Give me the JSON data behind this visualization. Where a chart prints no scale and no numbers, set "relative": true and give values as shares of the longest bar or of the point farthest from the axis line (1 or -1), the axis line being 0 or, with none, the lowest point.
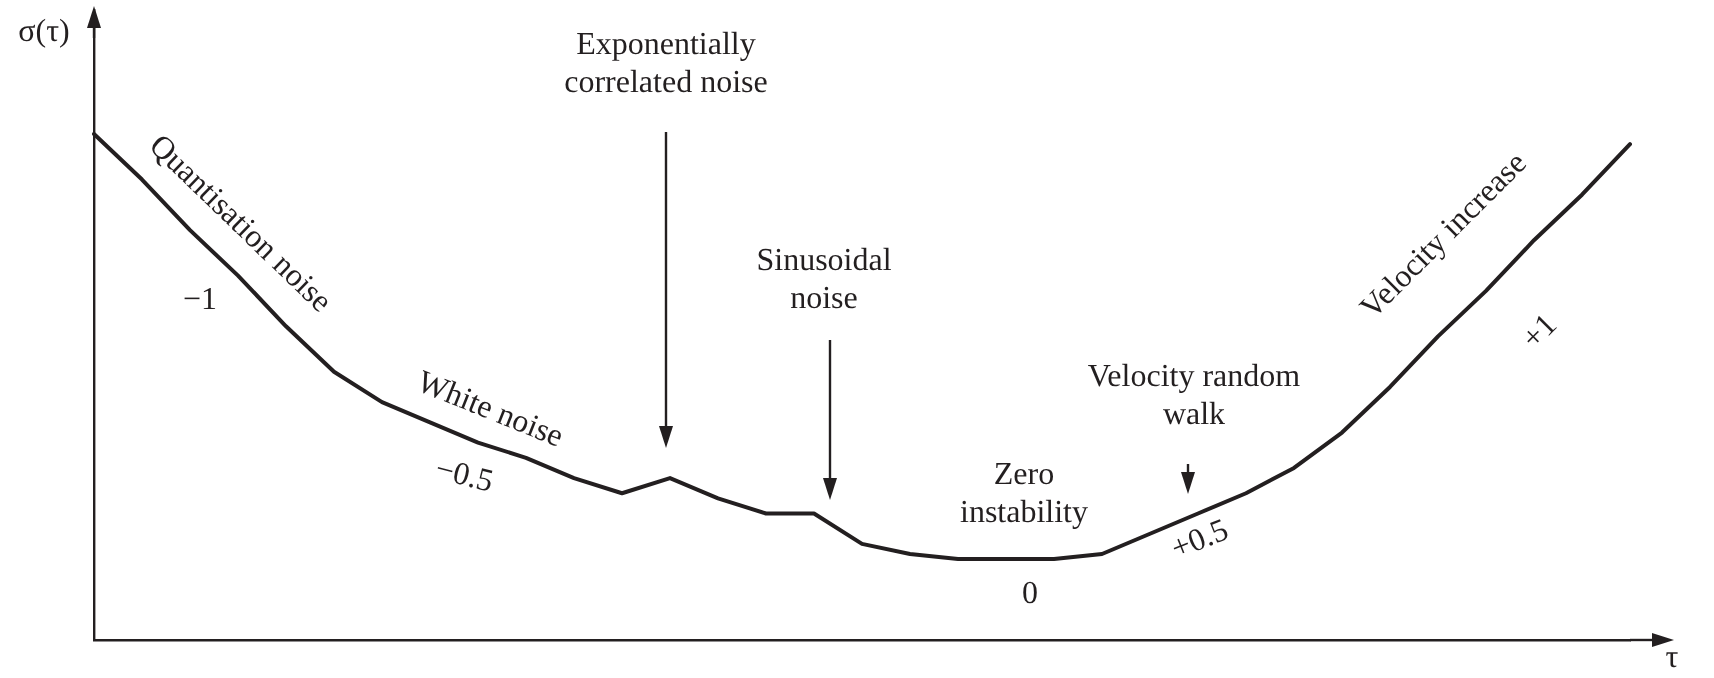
{
  "chart_data": {
    "type": "line",
    "relative": true,
    "xlabel": "τ",
    "ylabel": "σ(τ)",
    "color": "#231f20",
    "marker": "none",
    "grid": false,
    "legend": false,
    "categories": [
      null,
      null,
      null,
      null,
      null,
      null,
      null,
      null,
      null,
      null,
      null,
      null,
      null,
      null,
      null,
      null,
      null,
      null,
      null,
      null,
      null,
      null,
      null,
      null,
      null,
      null,
      null,
      null,
      null,
      null,
      null,
      null,
      null
    ],
    "values": [
      1,
      0.91,
      0.81,
      0.72,
      0.62,
      0.53,
      0.47,
      0.43,
      0.39,
      0.36,
      0.32,
      0.29,
      0.32,
      0.28,
      0.25,
      0.25,
      0.19,
      0.17,
      0.16,
      0.16,
      0.16,
      0.17,
      0.21,
      0.25,
      0.29,
      0.34,
      0.41,
      0.5,
      0.6,
      0.69,
      0.79,
      0.88,
      0.98
    ],
    "annotations": [
      "Quantisation noise",
      "−1",
      "White noise",
      "−0.5",
      "Exponentially correlated noise",
      "Sinusoidal noise",
      "Zero instability",
      "0",
      "Velocity random walk",
      "+0.5",
      "Velocity increase",
      "+1"
    ]
  }
}
